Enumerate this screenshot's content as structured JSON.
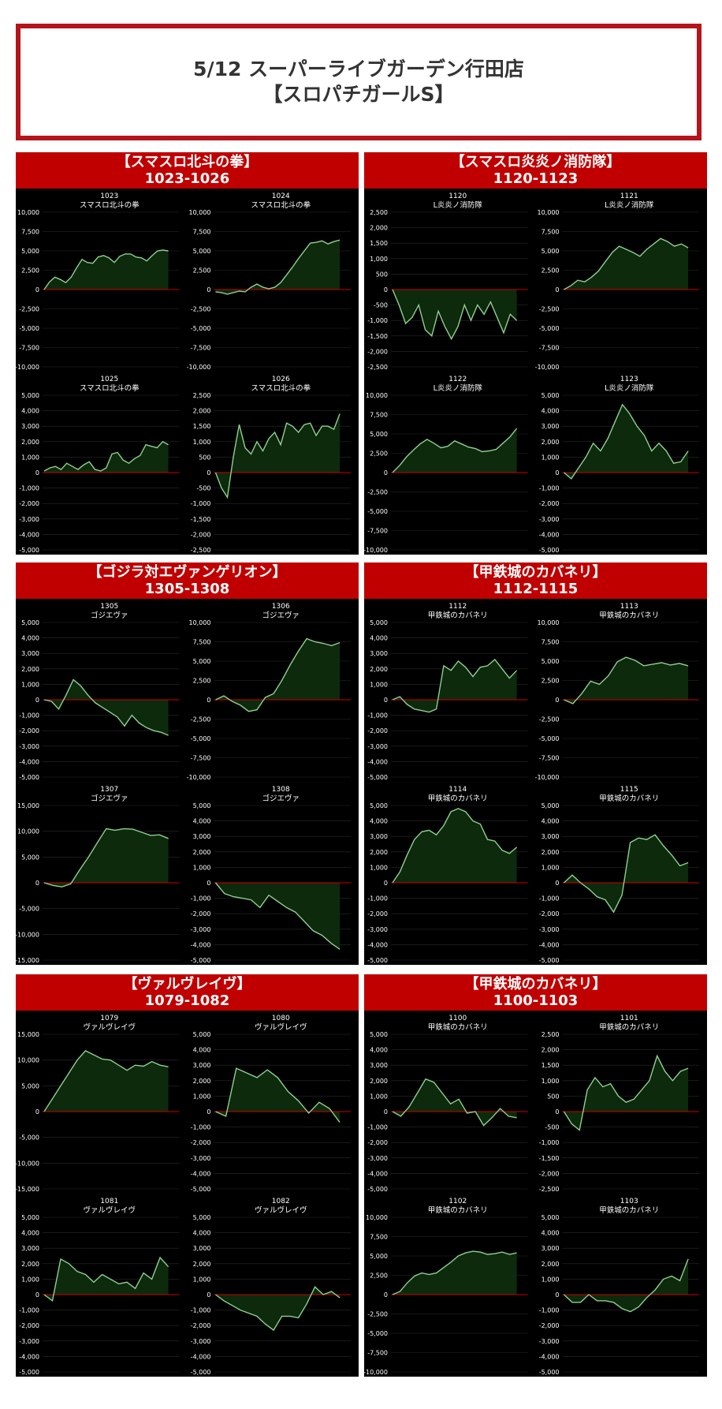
{
  "header": {
    "line1": "5/12  スーパーライブガーデン行田店",
    "line2": "【スロパチガールS】"
  },
  "colors": {
    "panel_head": "#c00000",
    "line": "#8fd08f",
    "fill": "#0d2a0d",
    "zero": "#cc0000",
    "grid": "#2a2a2a",
    "tick": "#ffffff"
  },
  "groups": [
    {
      "name": "【スマスロ北斗の拳】",
      "range": "1023-1026",
      "charts": [
        {
          "id": "1023",
          "machine": "スマスロ北斗の拳",
          "yticks": [
            10000,
            7500,
            5000,
            2500,
            0,
            -2500,
            -5000,
            -7500,
            -10000
          ],
          "values": [
            0,
            1000,
            1600,
            1300,
            900,
            1600,
            2800,
            3900,
            3500,
            3400,
            4200,
            4400,
            4100,
            3500,
            4300,
            4600,
            4600,
            4200,
            4100,
            3700,
            4400,
            5000,
            5100,
            5000
          ]
        },
        {
          "id": "1024",
          "machine": "スマスロ北斗の拳",
          "yticks": [
            10000,
            7500,
            5000,
            2500,
            0,
            -2500,
            -5000,
            -7500,
            -10000
          ],
          "values": [
            -300,
            -400,
            -600,
            -400,
            -200,
            -300,
            300,
            700,
            300,
            100,
            300,
            900,
            1900,
            2900,
            4000,
            5000,
            6000,
            6100,
            6300,
            5900,
            6200,
            6400
          ]
        },
        {
          "id": "1025",
          "machine": "スマスロ北斗の拳",
          "yticks": [
            5000,
            4000,
            3000,
            2000,
            1000,
            0,
            -1000,
            -2000,
            -3000,
            -4000,
            -5000
          ],
          "values": [
            100,
            300,
            400,
            200,
            600,
            400,
            200,
            500,
            700,
            200,
            100,
            300,
            1200,
            1300,
            800,
            600,
            900,
            1100,
            1800,
            1700,
            1600,
            2000,
            1800
          ]
        },
        {
          "id": "1026",
          "machine": "スマスロ北斗の拳",
          "yticks": [
            2500,
            2000,
            1500,
            1000,
            500,
            0,
            -500,
            -1000,
            -1500,
            -2000,
            -2500
          ],
          "values": [
            0,
            -500,
            -800,
            500,
            1550,
            800,
            600,
            1000,
            700,
            1100,
            1300,
            900,
            1600,
            1500,
            1300,
            1550,
            1600,
            1200,
            1500,
            1500,
            1400,
            1900
          ]
        }
      ]
    },
    {
      "name": "【スマスロ炎炎ノ消防隊】",
      "range": "1120-1123",
      "charts": [
        {
          "id": "1120",
          "machine": "L炎炎ノ消防隊",
          "yticks": [
            2500,
            2000,
            1500,
            1000,
            500,
            0,
            -500,
            -1000,
            -1500,
            -2000,
            -2500
          ],
          "values": [
            0,
            -500,
            -1100,
            -900,
            -500,
            -1300,
            -1500,
            -700,
            -1200,
            -1600,
            -1200,
            -500,
            -1000,
            -500,
            -800,
            -400,
            -900,
            -1400,
            -800,
            -1000
          ]
        },
        {
          "id": "1121",
          "machine": "L炎炎ノ消防隊",
          "yticks": [
            10000,
            7500,
            5000,
            2500,
            0,
            -2500,
            -5000,
            -7500,
            -10000
          ],
          "values": [
            0,
            500,
            1200,
            1000,
            1600,
            2400,
            3600,
            4800,
            5600,
            5200,
            4800,
            4300,
            5200,
            5900,
            6600,
            6200,
            5600,
            5900,
            5400
          ]
        },
        {
          "id": "1122",
          "machine": "L炎炎ノ消防隊",
          "yticks": [
            10000,
            7500,
            5000,
            2500,
            0,
            -2500,
            -5000,
            -7500,
            -10000
          ],
          "values": [
            0,
            900,
            2000,
            2900,
            3700,
            4300,
            3800,
            3200,
            3400,
            4100,
            3700,
            3300,
            3100,
            2700,
            2800,
            3000,
            3800,
            4600,
            5700
          ]
        },
        {
          "id": "1123",
          "machine": "L炎炎ノ消防隊",
          "yticks": [
            5000,
            4000,
            3000,
            2000,
            1000,
            0,
            -1000,
            -2000,
            -3000,
            -4000,
            -5000
          ],
          "values": [
            0,
            -400,
            300,
            1000,
            1900,
            1400,
            2200,
            3300,
            4400,
            3800,
            3000,
            2400,
            1400,
            1900,
            1400,
            600,
            700,
            1400
          ]
        }
      ]
    },
    {
      "name": "【ゴジラ対エヴァンゲリオン】",
      "range": "1305-1308",
      "charts": [
        {
          "id": "1305",
          "machine": "ゴジエヴァ",
          "yticks": [
            5000,
            4000,
            3000,
            2000,
            1000,
            0,
            -1000,
            -2000,
            -3000,
            -4000,
            -5000
          ],
          "values": [
            0,
            -100,
            -600,
            300,
            1300,
            900,
            300,
            -200,
            -500,
            -800,
            -1100,
            -1700,
            -1000,
            -1500,
            -1800,
            -2000,
            -2100,
            -2300
          ]
        },
        {
          "id": "1306",
          "machine": "ゴジエヴァ",
          "yticks": [
            10000,
            7500,
            5000,
            2500,
            0,
            -2500,
            -5000,
            -7500,
            -10000
          ],
          "values": [
            0,
            500,
            -200,
            -700,
            -1500,
            -1300,
            300,
            800,
            2500,
            4500,
            6300,
            7900,
            7500,
            7300,
            7000,
            7400
          ]
        },
        {
          "id": "1307",
          "machine": "ゴジエヴァ",
          "yticks": [
            15000,
            10000,
            5000,
            0,
            -5000,
            -10000,
            -15000
          ],
          "values": [
            0,
            -500,
            -800,
            -200,
            2500,
            5000,
            7800,
            10500,
            10200,
            10500,
            10400,
            9800,
            9200,
            9300,
            8600
          ]
        },
        {
          "id": "1308",
          "machine": "ゴジエヴァ",
          "yticks": [
            5000,
            4000,
            3000,
            2000,
            1000,
            0,
            -1000,
            -2000,
            -3000,
            -4000,
            -5000
          ],
          "values": [
            0,
            -700,
            -900,
            -1000,
            -1100,
            -1600,
            -800,
            -1200,
            -1600,
            -1900,
            -2500,
            -3100,
            -3400,
            -3900,
            -4300
          ]
        }
      ]
    },
    {
      "name": "【甲鉄城のカバネリ】",
      "range": "1112-1115",
      "charts": [
        {
          "id": "1112",
          "machine": "甲鉄城のカバネリ",
          "yticks": [
            5000,
            4000,
            3000,
            2000,
            1000,
            0,
            -1000,
            -2000,
            -3000,
            -4000,
            -5000
          ],
          "values": [
            0,
            200,
            -300,
            -600,
            -700,
            -800,
            -600,
            2200,
            1900,
            2500,
            2100,
            1500,
            2100,
            2200,
            2600,
            2000,
            1400,
            1900
          ]
        },
        {
          "id": "1113",
          "machine": "甲鉄城のカバネリ",
          "yticks": [
            10000,
            7500,
            5000,
            2500,
            0,
            -2500,
            -5000,
            -7500,
            -10000
          ],
          "values": [
            0,
            -500,
            800,
            2400,
            2000,
            3100,
            4900,
            5500,
            5100,
            4400,
            4600,
            4800,
            4500,
            4700,
            4400
          ]
        },
        {
          "id": "1114",
          "machine": "甲鉄城のカバネリ",
          "yticks": [
            5000,
            4000,
            3000,
            2000,
            1000,
            0,
            -1000,
            -2000,
            -3000,
            -4000,
            -5000
          ],
          "values": [
            0,
            700,
            1800,
            2800,
            3300,
            3400,
            3100,
            3700,
            4600,
            4800,
            4600,
            4000,
            3800,
            2800,
            2700,
            2100,
            1900,
            2300
          ]
        },
        {
          "id": "1115",
          "machine": "甲鉄城のカバネリ",
          "yticks": [
            5000,
            4000,
            3000,
            2000,
            1000,
            0,
            -1000,
            -2000,
            -3000,
            -4000,
            -5000
          ],
          "values": [
            0,
            500,
            0,
            -400,
            -900,
            -1100,
            -1900,
            -800,
            2600,
            2900,
            2800,
            3100,
            2400,
            1800,
            1100,
            1300
          ]
        }
      ]
    },
    {
      "name": "【ヴァルヴレイヴ】",
      "range": "1079-1082",
      "charts": [
        {
          "id": "1079",
          "machine": "ヴァルヴレイヴ",
          "yticks": [
            15000,
            10000,
            5000,
            0,
            -5000,
            -10000,
            -15000
          ],
          "values": [
            0,
            2500,
            5000,
            7500,
            10000,
            11800,
            11000,
            10200,
            10000,
            9000,
            8000,
            9000,
            8800,
            9700,
            9000,
            8700
          ]
        },
        {
          "id": "1080",
          "machine": "ヴァルヴレイヴ",
          "yticks": [
            5000,
            4000,
            3000,
            2000,
            1000,
            0,
            -1000,
            -2000,
            -3000,
            -4000,
            -5000
          ],
          "values": [
            0,
            -300,
            2800,
            2500,
            2200,
            2700,
            2200,
            1300,
            700,
            -100,
            600,
            200,
            -700
          ]
        },
        {
          "id": "1081",
          "machine": "ヴァルヴレイヴ",
          "yticks": [
            5000,
            4000,
            3000,
            2000,
            1000,
            0,
            -1000,
            -2000,
            -3000,
            -4000,
            -5000
          ],
          "values": [
            0,
            -400,
            2300,
            2000,
            1500,
            1300,
            800,
            1300,
            1000,
            700,
            800,
            400,
            1400,
            1000,
            2400,
            1800
          ]
        },
        {
          "id": "1082",
          "machine": "ヴァルヴレイヴ",
          "yticks": [
            5000,
            4000,
            3000,
            2000,
            1000,
            0,
            -1000,
            -2000,
            -3000,
            -4000,
            -5000
          ],
          "values": [
            0,
            -400,
            -700,
            -1000,
            -1200,
            -1400,
            -1900,
            -2300,
            -1400,
            -1400,
            -1500,
            -600,
            500,
            0,
            200,
            -200
          ]
        }
      ]
    },
    {
      "name": "【甲鉄城のカバネリ】",
      "range": "1100-1103",
      "charts": [
        {
          "id": "1100",
          "machine": "甲鉄城のカバネリ",
          "yticks": [
            5000,
            4000,
            3000,
            2000,
            1000,
            0,
            -1000,
            -2000,
            -3000,
            -4000,
            -5000
          ],
          "values": [
            0,
            -300,
            300,
            1200,
            2100,
            1900,
            1200,
            500,
            800,
            -100,
            0,
            -900,
            -400,
            200,
            -300,
            -400
          ]
        },
        {
          "id": "1101",
          "machine": "甲鉄城のカバネリ",
          "yticks": [
            2500,
            2000,
            1500,
            1000,
            500,
            0,
            -500,
            -1000,
            -1500,
            -2000,
            -2500
          ],
          "values": [
            0,
            -400,
            -600,
            700,
            1100,
            800,
            900,
            500,
            300,
            400,
            700,
            1000,
            1800,
            1300,
            1000,
            1300,
            1400
          ]
        },
        {
          "id": "1102",
          "machine": "甲鉄城のカバネリ",
          "yticks": [
            10000,
            7500,
            5000,
            2500,
            0,
            -2500,
            -5000,
            -7500,
            -10000
          ],
          "values": [
            0,
            400,
            1500,
            2400,
            2800,
            2600,
            2800,
            3500,
            4200,
            5000,
            5400,
            5600,
            5500,
            5200,
            5300,
            5500,
            5200,
            5400
          ]
        },
        {
          "id": "1103",
          "machine": "甲鉄城のカバネリ",
          "yticks": [
            5000,
            4000,
            3000,
            2000,
            1000,
            0,
            -1000,
            -2000,
            -3000,
            -4000,
            -5000
          ],
          "values": [
            0,
            -500,
            -500,
            0,
            -400,
            -400,
            -500,
            -900,
            -1100,
            -800,
            -200,
            300,
            1000,
            1200,
            900,
            2300
          ]
        }
      ]
    }
  ]
}
